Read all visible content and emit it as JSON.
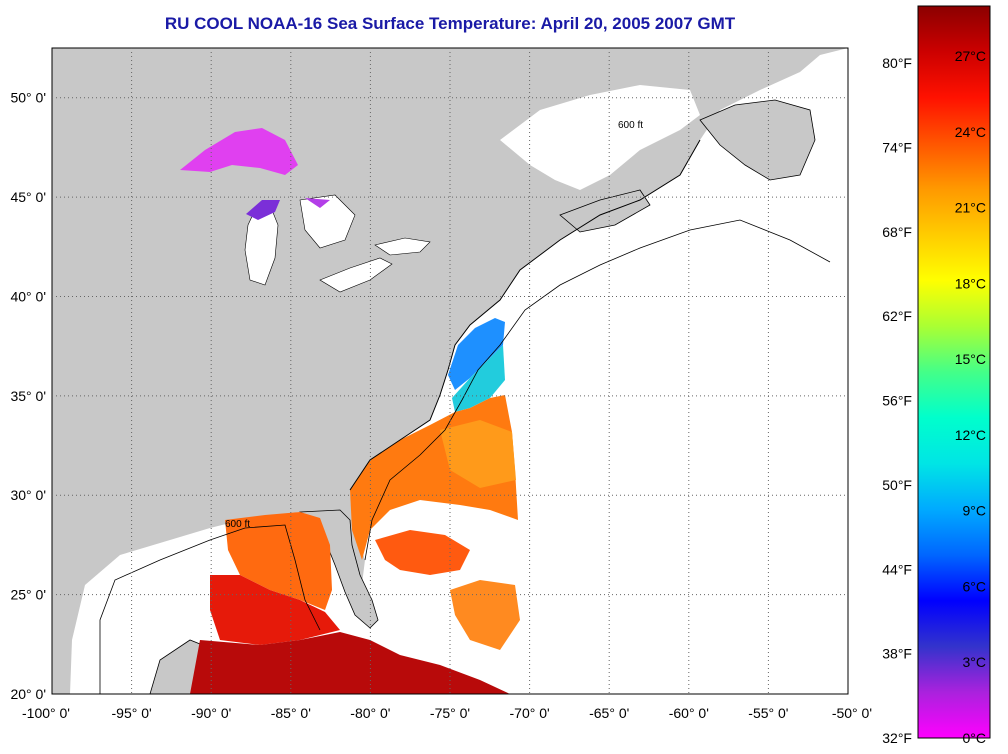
{
  "title": "RU COOL  NOAA-16  Sea Surface Temperature:  April 20, 2005 2007 GMT",
  "colors": {
    "title": "#1a1aa6",
    "land": "#c8c8c8",
    "ocean_nodata": "#ffffff",
    "grid": "#666666"
  },
  "map": {
    "lon_range": [
      -100,
      -50
    ],
    "lat_range": [
      20,
      52.5
    ],
    "lon_ticks": [
      -100,
      -95,
      -90,
      -85,
      -80,
      -75,
      -70,
      -65,
      -60,
      -55,
      -50
    ],
    "lat_ticks": [
      20,
      25,
      30,
      35,
      40,
      45,
      50
    ],
    "lon_labels": [
      "-100° 0'",
      "-95° 0'",
      "-90° 0'",
      "-85° 0'",
      "-80° 0'",
      "-75° 0'",
      "-70° 0'",
      "-65° 0'",
      "-60° 0'",
      "-55° 0'",
      "-50° 0'"
    ],
    "lat_labels": [
      "20° 0'",
      "25° 0'",
      "30° 0'",
      "35° 0'",
      "40° 0'",
      "45° 0'",
      "50° 0'"
    ],
    "isobath_label": "600 ft",
    "grid": "dotted"
  },
  "colorbar": {
    "fahrenheit_labels": [
      "80°F",
      "74°F",
      "68°F",
      "62°F",
      "56°F",
      "50°F",
      "44°F",
      "38°F",
      "32°F"
    ],
    "celsius_labels": [
      "27°C",
      "24°C",
      "21°C",
      "18°C",
      "15°C",
      "12°C",
      "9°C",
      "6°C",
      "3°C",
      "0°C"
    ],
    "gradient": [
      "#ff00ff",
      "#aa22dd",
      "#3333cc",
      "#0000ff",
      "#0066ff",
      "#00aaff",
      "#00e5e5",
      "#00ffcc",
      "#44ff88",
      "#aaff33",
      "#ffff00",
      "#ffcc00",
      "#ff9900",
      "#ff5500",
      "#ff1100",
      "#cc0000",
      "#8b0000"
    ]
  }
}
